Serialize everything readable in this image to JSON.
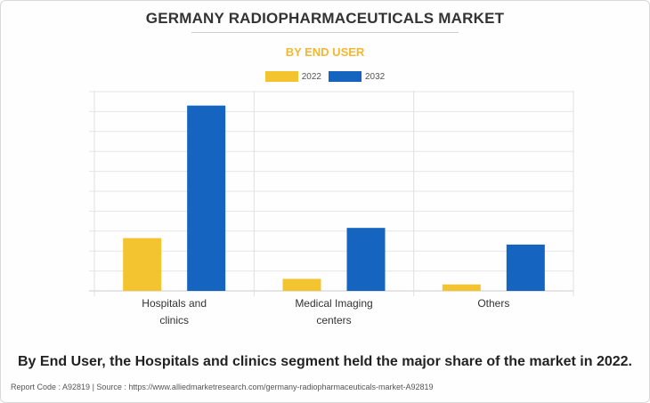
{
  "chart_data": {
    "type": "bar",
    "title": "GERMANY RADIOPHARMACEUTICALS MARKET",
    "subtitle": "BY END USER",
    "categories": [
      "Hospitals and clinics",
      "Medical Imaging centers",
      "Others"
    ],
    "category_lines": [
      [
        "Hospitals and",
        "clinics"
      ],
      [
        "Medical Imaging",
        "centers"
      ],
      [
        "Others"
      ]
    ],
    "series": [
      {
        "name": "2022",
        "color": "#f4c430",
        "values": [
          28.5,
          6.5,
          3.5
        ]
      },
      {
        "name": "2032",
        "color": "#1565c0",
        "values": [
          100,
          34,
          25
        ]
      }
    ],
    "ylim": [
      0,
      108
    ],
    "grid": true,
    "legend_position": "top-center",
    "xlabel": "",
    "ylabel": ""
  },
  "caption": "By End User, the Hospitals and clinics segment held the major share of the market in 2022.",
  "footer": "Report Code : A92819  |  Source : https://www.alliedmarketresearch.com/germany-radiopharmaceuticals-market-A92819"
}
